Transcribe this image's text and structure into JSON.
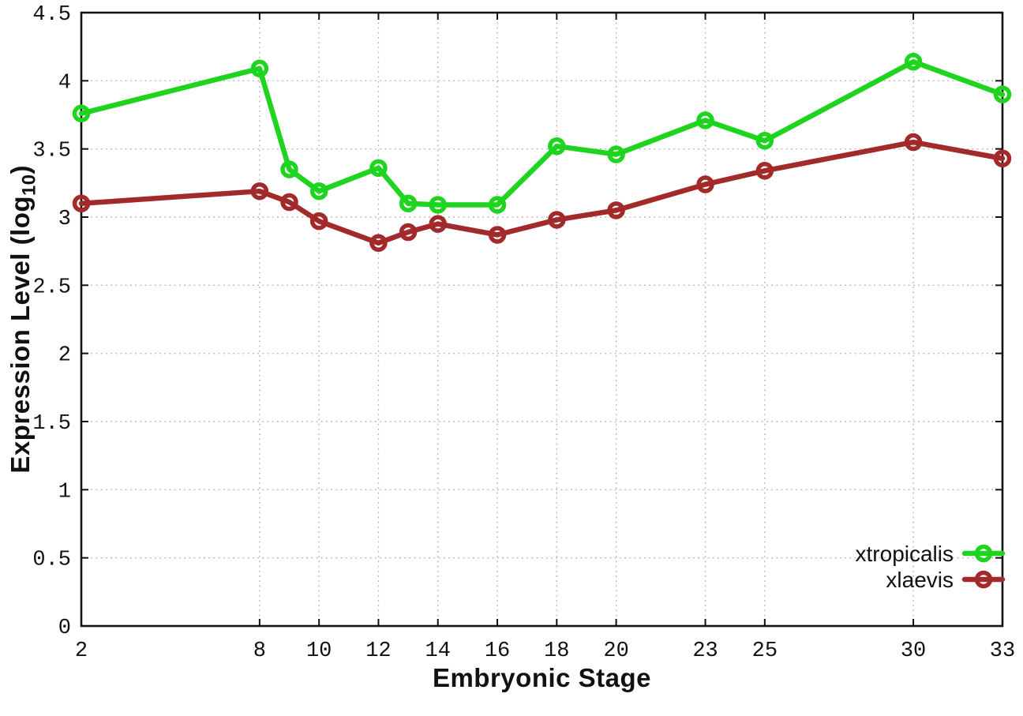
{
  "figure": {
    "background": "#ffffff",
    "xlabel": "Embryonic Stage",
    "ylabel_prefix": "Expression Level (log",
    "ylabel_subscript": "10",
    "ylabel_suffix": ")"
  },
  "chart_data": {
    "type": "line",
    "title": "",
    "xlabel": "Embryonic Stage",
    "ylabel": "Expression Level (log10)",
    "xlim": [
      2,
      33
    ],
    "ylim": [
      0,
      4.5
    ],
    "x_ticks": [
      2,
      8,
      10,
      12,
      14,
      16,
      18,
      20,
      23,
      25,
      30,
      33
    ],
    "y_ticks": [
      "0",
      "0.5",
      "1",
      "1.5",
      "2",
      "2.5",
      "3",
      "3.5",
      "4",
      "4.5"
    ],
    "grid": true,
    "grid_color": "#b5b5b5",
    "axis_color": "#111111",
    "tick_label_color": "#111111",
    "legend_position": "bottom-right",
    "marker": "open-circle",
    "series": [
      {
        "name": "xtropicalis",
        "color": "#1fd41f",
        "x": [
          2,
          8,
          9,
          10,
          12,
          13,
          14,
          16,
          18,
          20,
          23,
          25,
          30,
          33
        ],
        "y": [
          3.76,
          4.09,
          3.35,
          3.19,
          3.36,
          3.1,
          3.09,
          3.09,
          3.52,
          3.46,
          3.71,
          3.56,
          4.14,
          3.9
        ]
      },
      {
        "name": "xlaevis",
        "color": "#a32a2a",
        "x": [
          2,
          8,
          9,
          10,
          12,
          13,
          14,
          16,
          18,
          20,
          23,
          25,
          30,
          33
        ],
        "y": [
          3.1,
          3.19,
          3.11,
          2.97,
          2.81,
          2.89,
          2.95,
          2.87,
          2.98,
          3.05,
          3.24,
          3.34,
          3.55,
          3.43
        ]
      }
    ]
  }
}
